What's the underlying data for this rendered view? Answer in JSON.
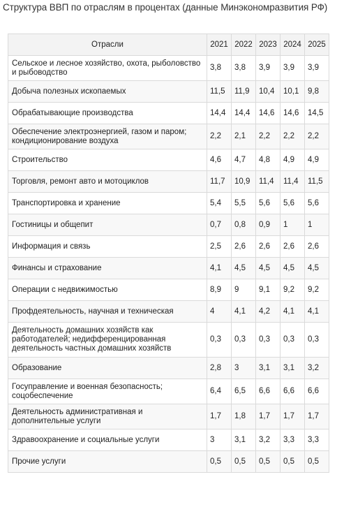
{
  "title": "Структура ВВП по отраслям в процентах (данные Минэкономразвития РФ)",
  "table": {
    "columns": [
      "Отрасли",
      "2021",
      "2022",
      "2023",
      "2024",
      "2025"
    ],
    "rows": [
      {
        "name": "Сельское и лесное хозяйство, охота, рыболовство и рыбоводство",
        "values": [
          "3,8",
          "3,8",
          "3,9",
          "3,9",
          "3,9"
        ]
      },
      {
        "name": "Добыча полезных ископаемых",
        "values": [
          "11,5",
          "11,9",
          "10,4",
          "10,1",
          "9,8"
        ]
      },
      {
        "name": "Обрабатывающие производства",
        "values": [
          "14,4",
          "14,4",
          "14,6",
          "14,6",
          "14,5"
        ]
      },
      {
        "name": "Обеспечение электроэнергией, газом и паром; кондиционирование воздуха",
        "values": [
          "2,2",
          "2,1",
          "2,2",
          "2,2",
          "2,2"
        ]
      },
      {
        "name": "Строительство",
        "values": [
          "4,6",
          "4,7",
          "4,8",
          "4,9",
          "4,9"
        ]
      },
      {
        "name": "Торговля, ремонт авто и мотоциклов",
        "values": [
          "11,7",
          "10,9",
          "11,4",
          "11,4",
          "11,5"
        ]
      },
      {
        "name": "Транспортировка и хранение",
        "values": [
          "5,4",
          "5,5",
          "5,6",
          "5,6",
          "5,6"
        ]
      },
      {
        "name": "Гостиницы и общепит",
        "values": [
          "0,7",
          "0,8",
          "0,9",
          "1",
          "1"
        ]
      },
      {
        "name": "Информация и связь",
        "values": [
          "2,5",
          "2,6",
          "2,6",
          "2,6",
          "2,6"
        ]
      },
      {
        "name": "Финансы и страхование",
        "values": [
          "4,1",
          "4,5",
          "4,5",
          "4,5",
          "4,5"
        ]
      },
      {
        "name": "Операции с недвижимостью",
        "values": [
          "8,9",
          "9",
          "9,1",
          "9,2",
          "9,2"
        ]
      },
      {
        "name": "Профдеятельность, научная и техническая",
        "values": [
          "4",
          "4,1",
          "4,2",
          "4,1",
          "4,1"
        ]
      },
      {
        "name": "Деятельность домашних хозяйств как работодателей; недифференцированная деятельность частных домашних хозяйств",
        "values": [
          "0,3",
          "0,3",
          "0,3",
          "0,3",
          "0,3"
        ]
      },
      {
        "name": "Образование",
        "values": [
          "2,8",
          "3",
          "3,1",
          "3,1",
          "3,2"
        ]
      },
      {
        "name": "Госуправление и военная безопасность; соцобеспечение",
        "values": [
          "6,4",
          "6,5",
          "6,6",
          "6,6",
          "6,6"
        ]
      },
      {
        "name": "Деятельность административная и дополнительные услуги",
        "values": [
          "1,7",
          "1,8",
          "1,7",
          "1,7",
          "1,7"
        ]
      },
      {
        "name": "Здравоохранение и социальные услуги",
        "values": [
          "3",
          "3,1",
          "3,2",
          "3,3",
          "3,3"
        ]
      },
      {
        "name": "Прочие услуги",
        "values": [
          "0,5",
          "0,5",
          "0,5",
          "0,5",
          "0,5"
        ]
      }
    ]
  }
}
